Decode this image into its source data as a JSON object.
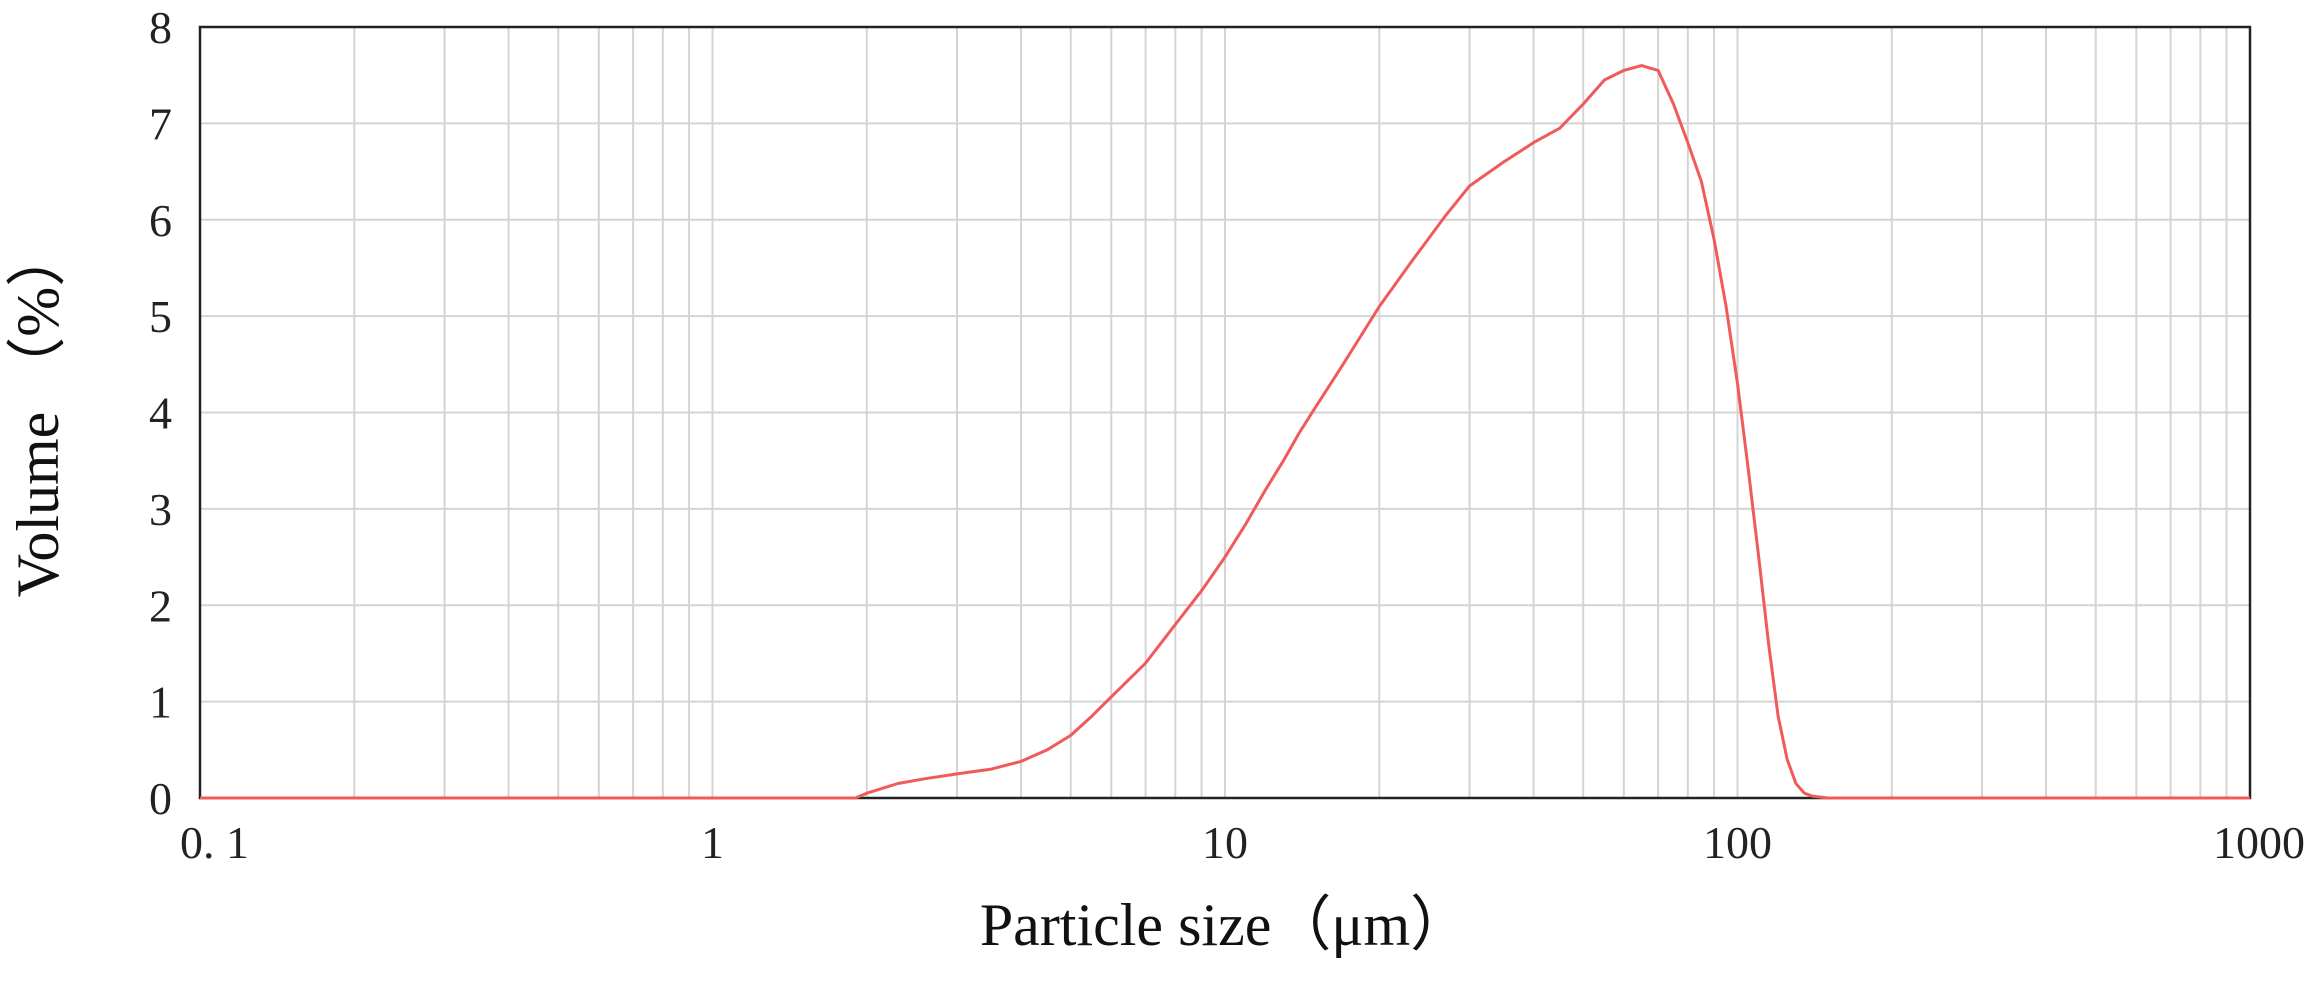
{
  "chart_data": {
    "type": "line",
    "x_scale": "log",
    "xlim": [
      0.1,
      1000
    ],
    "ylim": [
      0,
      8
    ],
    "grid": true,
    "xlabel": "Particle size（μm）",
    "ylabel": "Volume （%）",
    "x_ticks": [
      "0. 1",
      "1",
      "10",
      "100",
      "1000"
    ],
    "y_ticks": [
      "0",
      "1",
      "2",
      "3",
      "4",
      "5",
      "6",
      "7",
      "8"
    ],
    "series_color": "#f05a5a",
    "series": [
      {
        "x": [
          0.1,
          1,
          1.9,
          2.0,
          2.3,
          2.6,
          3.0,
          3.5,
          4.0,
          4.5,
          5.0,
          5.5,
          6.0,
          7.0,
          8.0,
          9.0,
          10,
          11,
          12,
          13,
          14,
          15,
          17,
          20,
          23,
          27,
          30,
          35,
          40,
          45,
          50,
          55,
          60,
          65,
          70,
          75,
          80,
          85,
          90,
          95,
          100,
          105,
          110,
          115,
          120,
          125,
          130,
          135,
          140,
          150,
          160,
          180,
          1000
        ],
        "y": [
          0,
          0,
          0,
          0.05,
          0.15,
          0.2,
          0.25,
          0.3,
          0.38,
          0.5,
          0.65,
          0.85,
          1.05,
          1.4,
          1.8,
          2.15,
          2.5,
          2.85,
          3.2,
          3.5,
          3.8,
          4.05,
          4.5,
          5.1,
          5.55,
          6.05,
          6.35,
          6.6,
          6.8,
          6.95,
          7.2,
          7.45,
          7.55,
          7.6,
          7.55,
          7.2,
          6.8,
          6.4,
          5.8,
          5.1,
          4.3,
          3.4,
          2.5,
          1.6,
          0.85,
          0.4,
          0.15,
          0.05,
          0.02,
          0,
          0,
          0,
          0
        ]
      }
    ]
  }
}
